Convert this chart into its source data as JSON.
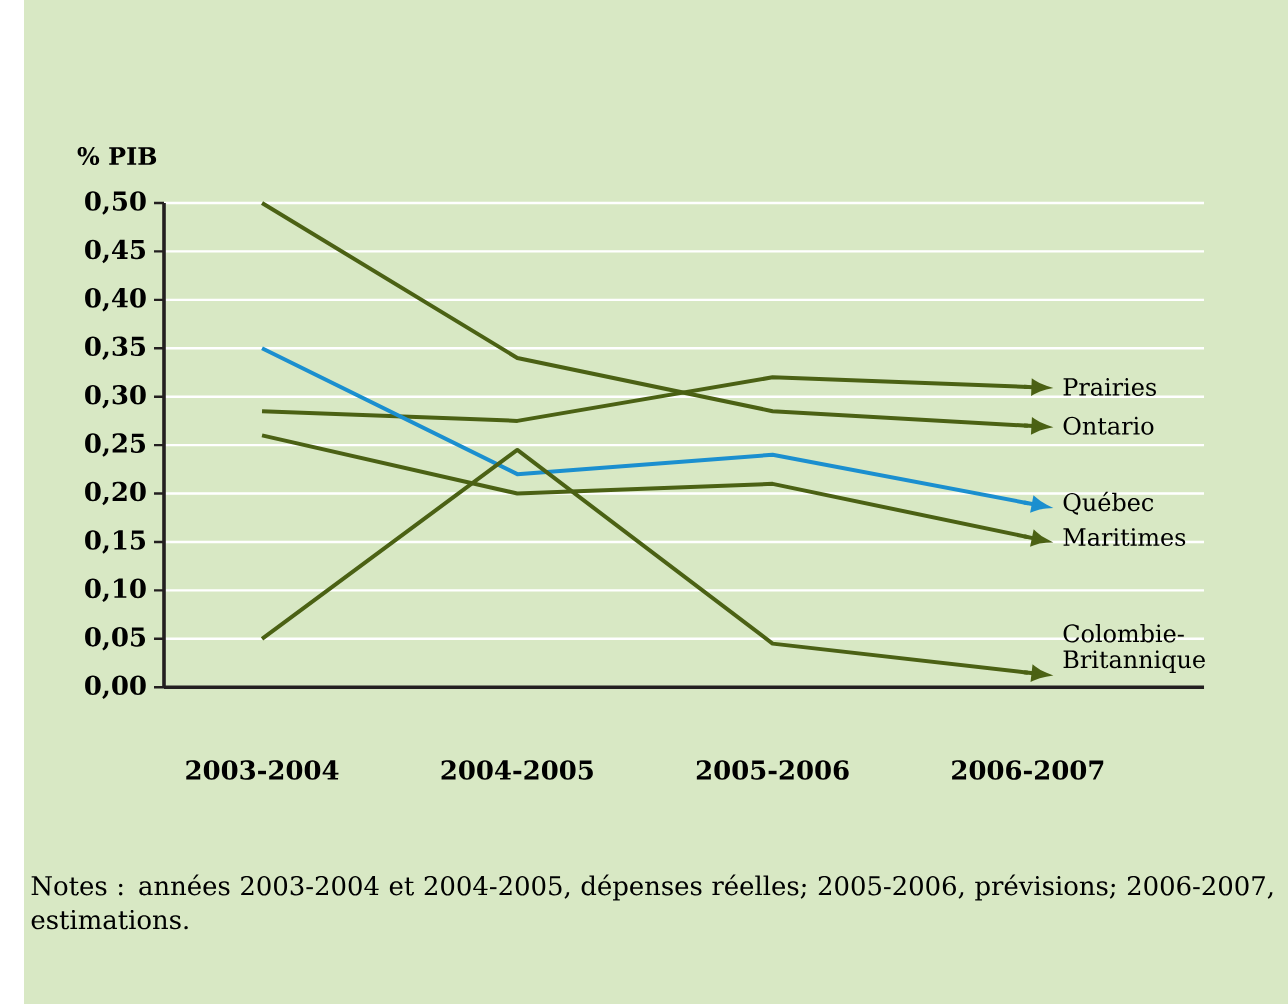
{
  "chart_data": {
    "type": "line",
    "ylabel": "% PIB",
    "categories": [
      "2003-2004",
      "2004-2005",
      "2005-2006",
      "2006-2007"
    ],
    "series": [
      {
        "name": "Prairies",
        "color": "#4b6114",
        "values": [
          0.285,
          0.275,
          0.32,
          0.31
        ]
      },
      {
        "name": "Ontario",
        "color": "#4b6114",
        "values": [
          0.5,
          0.34,
          0.285,
          0.27
        ]
      },
      {
        "name": "Québec",
        "color": "#1b8fcf",
        "values": [
          0.35,
          0.22,
          0.24,
          0.19
        ]
      },
      {
        "name": "Maritimes",
        "color": "#4b6114",
        "values": [
          0.26,
          0.2,
          0.21,
          0.155
        ]
      },
      {
        "name": "Colombie-Britannique",
        "color": "#4b6114",
        "values": [
          0.05,
          0.245,
          0.045,
          0.015
        ]
      }
    ],
    "ylim": [
      0,
      0.5
    ],
    "yticks": [
      {
        "value": 0,
        "label": "0,00"
      },
      {
        "value": 0.05,
        "label": "0,05"
      },
      {
        "value": 0.1,
        "label": "0,10"
      },
      {
        "value": 0.15,
        "label": "0,15"
      },
      {
        "value": 0.2,
        "label": "0,20"
      },
      {
        "value": 0.25,
        "label": "0,25"
      },
      {
        "value": 0.3,
        "label": "0,30"
      },
      {
        "value": 0.35,
        "label": "0,35"
      },
      {
        "value": 0.4,
        "label": "0,40"
      },
      {
        "value": 0.45,
        "label": "0,45"
      },
      {
        "value": 0.5,
        "label": "0,50"
      }
    ],
    "grid": "y",
    "legend": "right",
    "annotations": [
      "Notes : années 2003-2004 et 2004-2005, dépenses réelles; 2005-2006, prévisions; 2006-2007, estimations."
    ]
  }
}
